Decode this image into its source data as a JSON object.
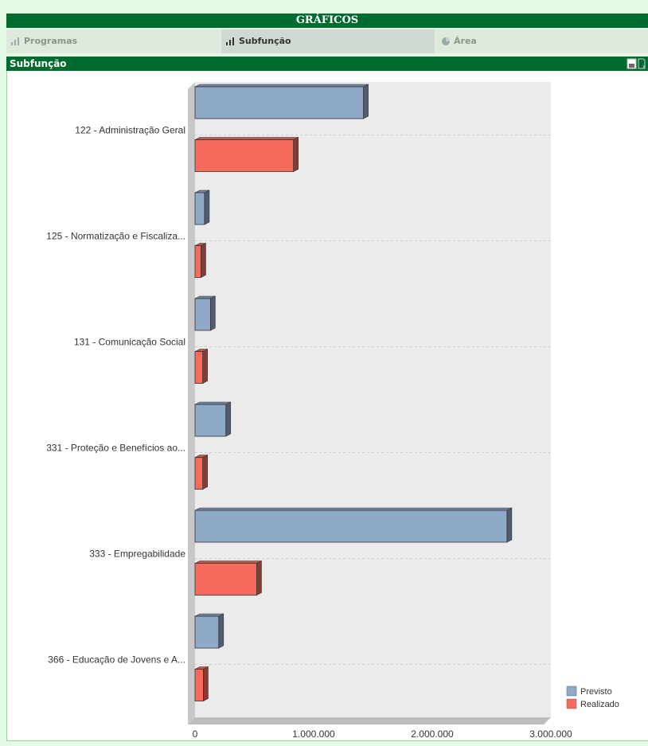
{
  "header": {
    "title": "GRÁFICOS"
  },
  "tabs": [
    {
      "label": "Programas",
      "icon": "bar-chart-icon",
      "active": false
    },
    {
      "label": "Subfunção",
      "icon": "bar-chart-icon",
      "active": true
    },
    {
      "label": "Área",
      "icon": "pie-chart-icon",
      "active": false
    }
  ],
  "panel": {
    "title": "Subfunção"
  },
  "colors": {
    "header": "#006b2e",
    "previsto": "#8fa9c9",
    "realizado": "#f86b5c"
  },
  "chart_data": {
    "type": "bar",
    "orientation": "horizontal",
    "categories": [
      "122 - Administração Geral",
      "125 - Normatização e Fiscaliza...",
      "131 - Comunicação Social",
      "331 - Proteção e Benefícios ao...",
      "333 - Empregabilidade",
      "366 - Educação de Jovens e A..."
    ],
    "series": [
      {
        "name": "Previsto",
        "color": "#8fa9c9",
        "values": [
          1420000,
          80000,
          130000,
          260000,
          2630000,
          200000
        ]
      },
      {
        "name": "Realizado",
        "color": "#f86b5c",
        "values": [
          830000,
          50000,
          65000,
          65000,
          520000,
          70000
        ]
      }
    ],
    "xlim": [
      0,
      3000000
    ],
    "xticks": [
      0,
      1000000,
      2000000,
      3000000
    ],
    "xtick_labels": [
      "0",
      "1.000.000",
      "2.000.000",
      "3.000.000"
    ],
    "grid": true,
    "legend": "bottom-right",
    "style": "3d"
  }
}
